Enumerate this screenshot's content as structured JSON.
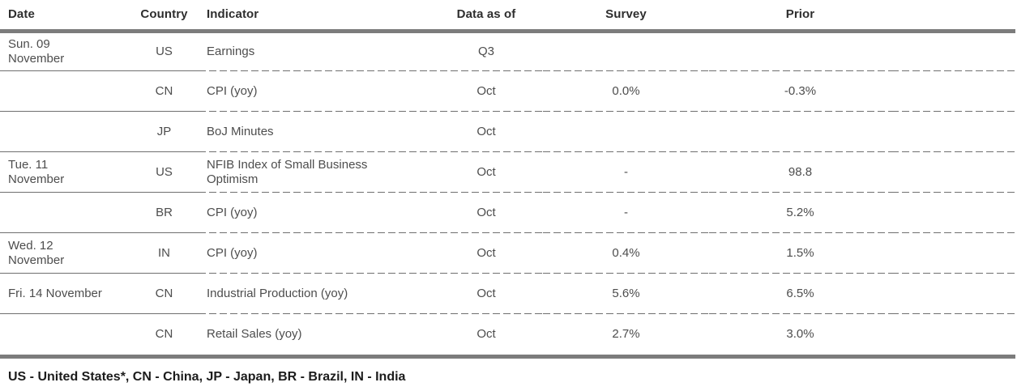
{
  "colors": {
    "rule_heavy": "#7c7c7c",
    "rule_light": "#6f6f6f",
    "header_text": "#2e2e2e",
    "body_text": "#4d4d4d",
    "legend_text": "#1c1c1c"
  },
  "table": {
    "columns": {
      "date": "Date",
      "country": "Country",
      "indicator": "Indicator",
      "data_as_of": "Data as of",
      "survey": "Survey",
      "prior": "Prior"
    },
    "rows": [
      {
        "date": "Sun. 09\nNovember",
        "country": "US",
        "indicator": "Earnings",
        "data_as_of": "Q3",
        "survey": "",
        "prior": ""
      },
      {
        "date": "",
        "country": "CN",
        "indicator": "CPI (yoy)",
        "data_as_of": "Oct",
        "survey": "0.0%",
        "prior": "-0.3%"
      },
      {
        "date": "",
        "country": "JP",
        "indicator": "BoJ Minutes",
        "data_as_of": "Oct",
        "survey": "",
        "prior": ""
      },
      {
        "date": "Tue. 11\nNovember",
        "country": "US",
        "indicator": "NFIB Index of Small Business\nOptimism",
        "data_as_of": "Oct",
        "survey": "-",
        "prior": "98.8"
      },
      {
        "date": "",
        "country": "BR",
        "indicator": "CPI (yoy)",
        "data_as_of": "Oct",
        "survey": "-",
        "prior": "5.2%"
      },
      {
        "date": "Wed. 12\nNovember",
        "country": "IN",
        "indicator": "CPI (yoy)",
        "data_as_of": "Oct",
        "survey": "0.4%",
        "prior": "1.5%"
      },
      {
        "date": "Fri. 14 November",
        "country": "CN",
        "indicator": "Industrial Production (yoy)",
        "data_as_of": "Oct",
        "survey": "5.6%",
        "prior": "6.5%"
      },
      {
        "date": "",
        "country": "CN",
        "indicator": "Retail Sales (yoy)",
        "data_as_of": "Oct",
        "survey": "2.7%",
        "prior": "3.0%"
      }
    ]
  },
  "footer": {
    "legend": "US - United States*, CN - China, JP - Japan, BR - Brazil, IN - India"
  }
}
